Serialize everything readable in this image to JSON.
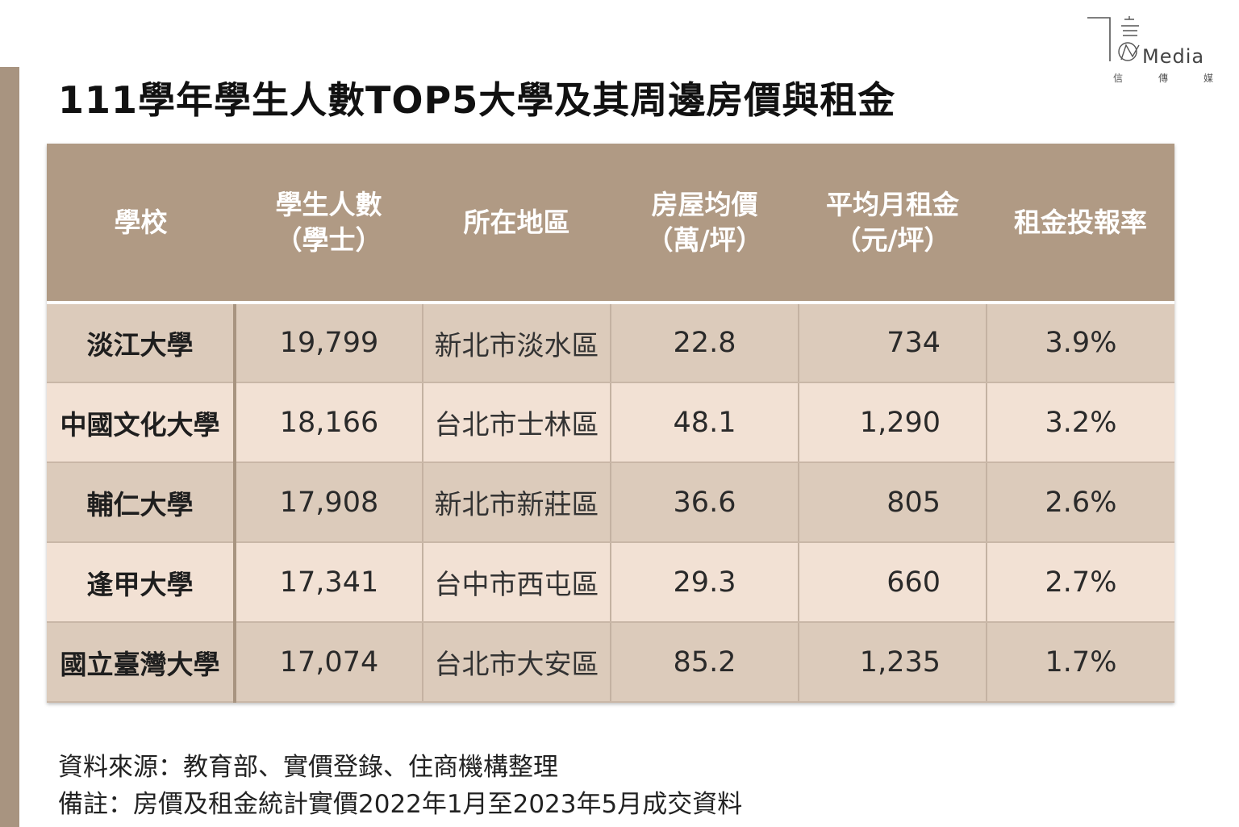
{
  "brand": {
    "logo_text": "Media",
    "logo_sub": [
      "信",
      "傳",
      "媒"
    ]
  },
  "title": "111學年學生人數TOP5大學及其周邊房價與租金",
  "table": {
    "headers": [
      [
        "學校"
      ],
      [
        "學生人數",
        "（學士）"
      ],
      [
        "所在地區"
      ],
      [
        "房屋均價",
        "（萬/坪）"
      ],
      [
        "平均月租金",
        "（元/坪）"
      ],
      [
        "租金投報率"
      ]
    ],
    "rows": [
      {
        "school": "淡江大學",
        "students": "19,799",
        "district": "新北市淡水區",
        "price": "22.8",
        "rent": "734",
        "yield": "3.9%"
      },
      {
        "school": "中國文化大學",
        "students": "18,166",
        "district": "台北市士林區",
        "price": "48.1",
        "rent": "1,290",
        "yield": "3.2%"
      },
      {
        "school": "輔仁大學",
        "students": "17,908",
        "district": "新北市新莊區",
        "price": "36.6",
        "rent": "805",
        "yield": "2.6%"
      },
      {
        "school": "逢甲大學",
        "students": "17,341",
        "district": "台中市西屯區",
        "price": "29.3",
        "rent": "660",
        "yield": "2.7%"
      },
      {
        "school": "國立臺灣大學",
        "students": "17,074",
        "district": "台北市大安區",
        "price": "85.2",
        "rent": "1,235",
        "yield": "1.7%"
      }
    ]
  },
  "notes": {
    "source": "資料來源：教育部、實價登錄、住商機構整理",
    "remark": "備註：房價及租金統計實價2022年1月至2023年5月成交資料"
  },
  "colors": {
    "header_bg": "#b09a84",
    "row_dark": "#dccbbb",
    "row_light": "#f2e1d4",
    "side_bar": "#a89480"
  }
}
